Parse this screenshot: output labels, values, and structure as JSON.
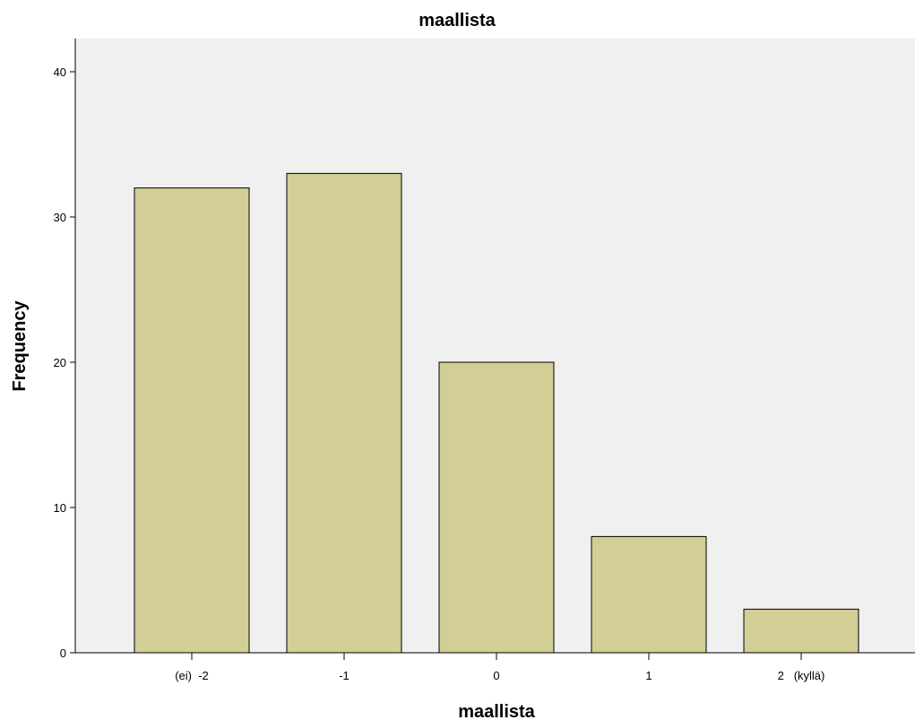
{
  "chart_data": {
    "type": "bar",
    "title": "maallista",
    "xlabel": "maallista",
    "ylabel": "Frequency",
    "categories": [
      "(ei)  -2",
      "-1",
      "0",
      "1",
      "2   (kyllä)"
    ],
    "values": [
      32,
      33,
      20,
      8,
      3
    ],
    "ylim": [
      0,
      40
    ],
    "yticks": [
      0,
      10,
      20,
      30,
      40
    ],
    "ytick_labels": [
      "0",
      "10",
      "20",
      "30",
      "40"
    ],
    "bar_color": "#d3cd96",
    "plot_background": "#f0f0f0",
    "grid": false,
    "legend": "none"
  }
}
